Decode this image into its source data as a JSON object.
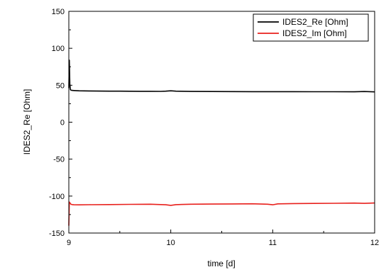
{
  "chart_data": {
    "type": "line",
    "xlabel": "time [d]",
    "ylabel": "IDES2_Re [Ohm]",
    "xlim": [
      9,
      12
    ],
    "ylim": [
      -150,
      150
    ],
    "xticks": [
      9,
      10,
      11,
      12
    ],
    "yticks": [
      150,
      100,
      50,
      0,
      -50,
      -100,
      -150
    ],
    "xtick_labels": [
      "9",
      "10",
      "11",
      "12"
    ],
    "ytick_labels": [
      "150",
      "100",
      "50",
      "0",
      "-50",
      "-100",
      "-150"
    ],
    "grid": false,
    "legend_position": "top-right",
    "series": [
      {
        "name": "IDES2_Re [Ohm]",
        "color": "#000000",
        "x": [
          9.0,
          9.005,
          9.01,
          9.015,
          9.02,
          9.03,
          9.05,
          9.1,
          9.2,
          9.3,
          9.4,
          9.5,
          9.6,
          9.7,
          9.8,
          9.9,
          9.95,
          10.0,
          10.05,
          10.2,
          10.4,
          10.6,
          10.8,
          11.0,
          11.2,
          11.4,
          11.6,
          11.8,
          11.9,
          12.0
        ],
        "y": [
          46,
          84,
          52,
          44,
          43.5,
          43,
          42.8,
          42.5,
          42.3,
          42.1,
          42,
          42,
          41.9,
          41.8,
          41.8,
          41.7,
          42,
          42.5,
          42,
          41.6,
          41.5,
          41.4,
          41.3,
          41.3,
          41.3,
          41.2,
          41.2,
          41.1,
          41.5,
          41.0
        ]
      },
      {
        "name": "IDES2_Im [Ohm]",
        "color": "#e8201c",
        "x": [
          9.0,
          9.005,
          9.01,
          9.015,
          9.02,
          9.03,
          9.05,
          9.1,
          9.2,
          9.4,
          9.6,
          9.8,
          9.95,
          10.0,
          10.05,
          10.2,
          10.4,
          10.6,
          10.8,
          10.95,
          11.0,
          11.05,
          11.2,
          11.4,
          11.6,
          11.8,
          11.9,
          12.0
        ],
        "y": [
          -140,
          -108,
          -109,
          -110,
          -111,
          -111.5,
          -111.8,
          -111.9,
          -111.7,
          -111.5,
          -111.2,
          -111,
          -111.8,
          -112.5,
          -111.6,
          -111,
          -110.8,
          -110.6,
          -110.4,
          -111,
          -111.8,
          -110.5,
          -110.1,
          -109.9,
          -109.7,
          -109.5,
          -109.8,
          -109.4
        ]
      }
    ]
  }
}
